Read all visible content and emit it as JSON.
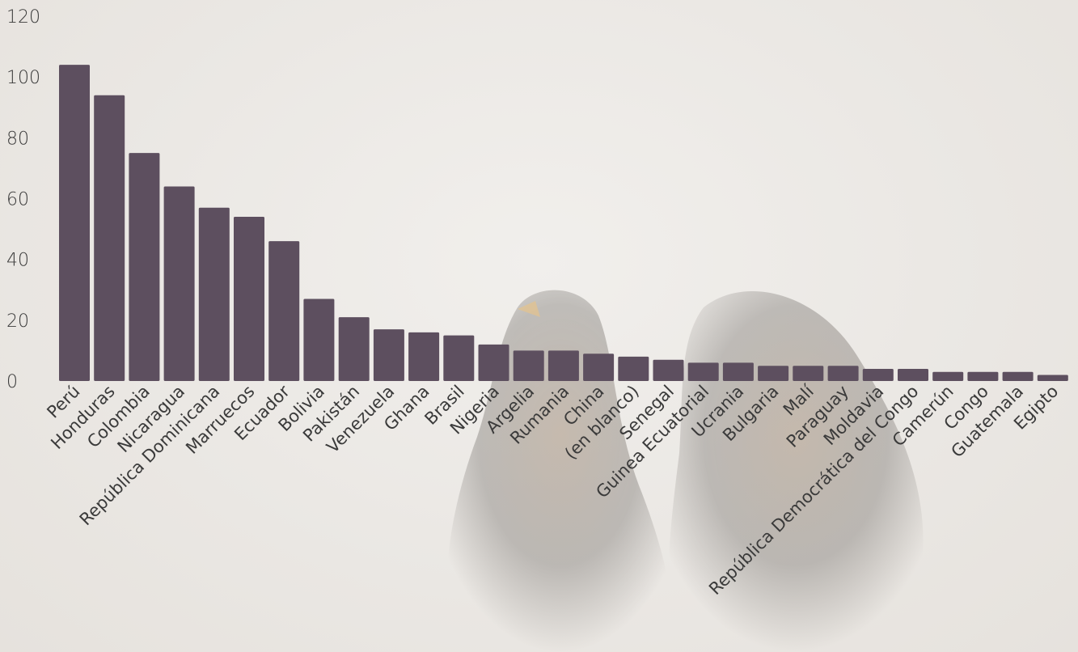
{
  "background": {
    "photo": "two-birds-silhouette",
    "colors": {
      "sky": "#ebe8e5",
      "bird_dark": "#2b2520",
      "bird_warm": "#6b4a2a",
      "beak": "#d4a04a"
    }
  },
  "chart_data": {
    "type": "bar",
    "title": "",
    "xlabel": "",
    "ylabel": "",
    "ylim": [
      0,
      120
    ],
    "yticks": [
      0,
      20,
      40,
      60,
      80,
      100,
      120
    ],
    "grid": false,
    "legend": "none",
    "bar_color": "#5d4f5f",
    "categories": [
      "Perú",
      "Honduras",
      "Colombia",
      "Nicaragua",
      "República Dominicana",
      "Marruecos",
      "Ecuador",
      "Bolivia",
      "Pakistán",
      "Venezuela",
      "Ghana",
      "Brasil",
      "Nigeria",
      "Argelia",
      "Rumania",
      "China",
      "(en blanco)",
      "Senegal",
      "Guinea Ecuatorial",
      "Ucrania",
      "Bulgaria",
      "Malí",
      "Paraguay",
      "Moldavia",
      "República Democrática del Congo",
      "Camerún",
      "Congo",
      "Guatemala",
      "Egipto"
    ],
    "values": [
      104,
      94,
      75,
      64,
      57,
      54,
      46,
      27,
      21,
      17,
      16,
      15,
      12,
      10,
      10,
      9,
      8,
      7,
      6,
      6,
      5,
      5,
      5,
      4,
      4,
      3,
      3,
      3,
      2
    ]
  }
}
